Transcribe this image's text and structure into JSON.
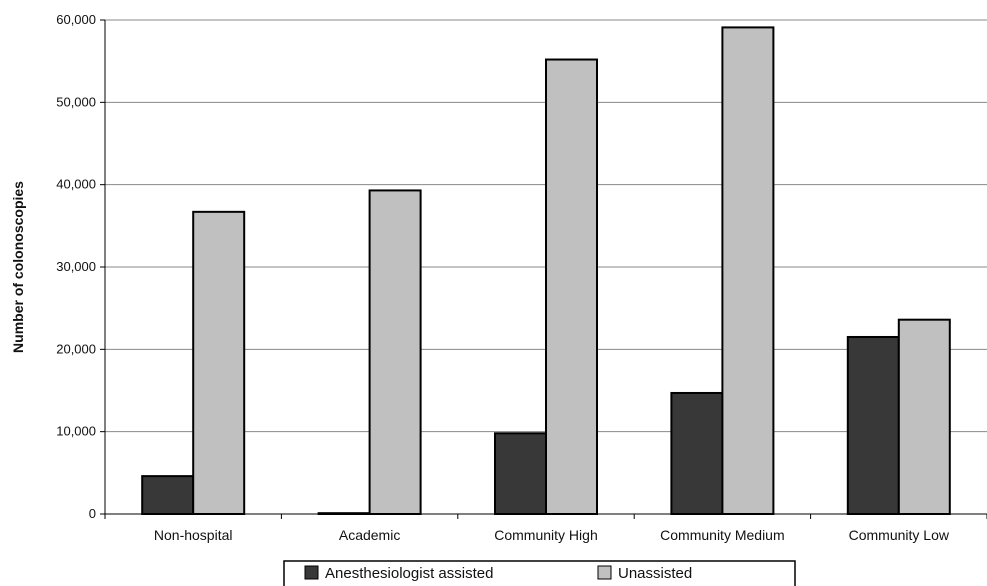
{
  "chart_data": {
    "type": "bar",
    "title": "",
    "xlabel": "",
    "ylabel": "Number of colonoscopies",
    "categories": [
      "Non-hospital",
      "Academic",
      "Community High",
      "Community Medium",
      "Community Low"
    ],
    "series": [
      {
        "name": "Anesthesiologist assisted",
        "color": "#383838",
        "values": [
          4600,
          100,
          9800,
          14700,
          21500
        ]
      },
      {
        "name": "Unassisted",
        "color": "#c0c0c0",
        "values": [
          36700,
          39300,
          55200,
          59100,
          23600
        ]
      }
    ],
    "ylim": [
      0,
      60000
    ],
    "yticks": [
      0,
      10000,
      20000,
      30000,
      40000,
      50000,
      60000
    ],
    "ytick_labels": [
      "0",
      "10,000",
      "20,000",
      "30,000",
      "40,000",
      "50,000",
      "60,000"
    ],
    "grid": true,
    "legend_position": "bottom"
  }
}
